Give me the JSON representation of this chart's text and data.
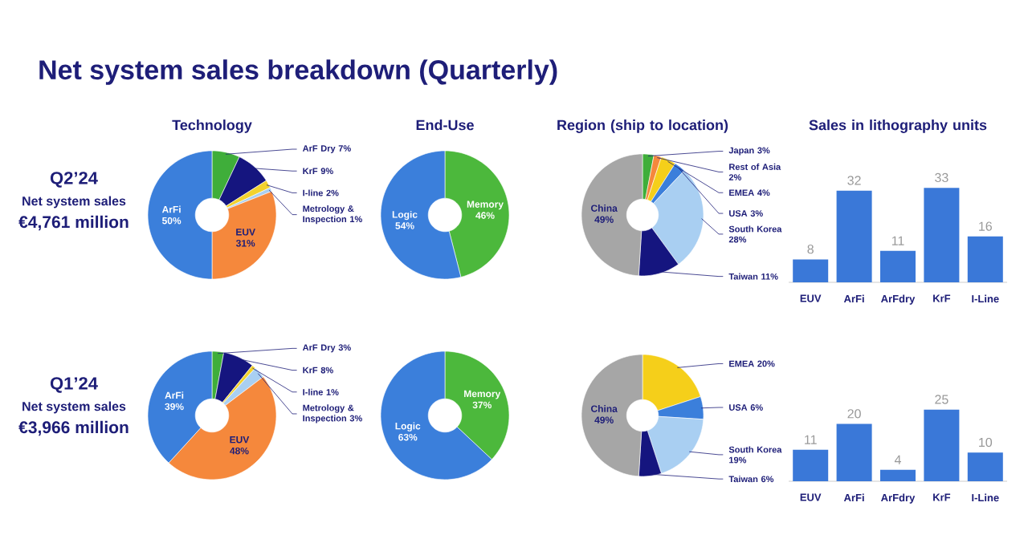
{
  "chart_data": [
    {
      "type": "other",
      "title": "Net system sales breakdown (Quarterly)",
      "annotations": [
        "Q2’24",
        "Net system sales",
        "€4,761 million",
        "Q1’24",
        "Net system sales",
        "€3,966 million"
      ]
    },
    {
      "type": "donut",
      "title": "Technology",
      "categories": [
        "ArF Dry",
        "KrF",
        "I-line",
        "Metrology & Inspection",
        "EUV",
        "ArFi"
      ],
      "values": [
        7,
        9,
        2,
        1,
        31,
        50
      ],
      "value_labels": [
        "7%",
        "9%",
        "2%",
        "1%",
        "31%",
        "50%"
      ],
      "colors": [
        "#3fae3a",
        "#15157f",
        "#f2d22e",
        "#a9cff2",
        "#f5883c",
        "#3b7fdb"
      ]
    },
    {
      "type": "donut",
      "title": "End-Use",
      "categories": [
        "Memory",
        "Logic"
      ],
      "values": [
        46,
        54
      ],
      "value_labels": [
        "46%",
        "54%"
      ],
      "colors": [
        "#4cb83c",
        "#3b7fdb"
      ]
    },
    {
      "type": "donut",
      "title": "Region (ship to location)",
      "categories": [
        "Japan",
        "Rest of Asia",
        "EMEA",
        "USA",
        "South Korea",
        "Taiwan",
        "China"
      ],
      "values": [
        3,
        2,
        4,
        3,
        28,
        11,
        49
      ],
      "value_labels": [
        "3%",
        "2%",
        "4%",
        "3%",
        "28%",
        "11%",
        "49%"
      ],
      "colors": [
        "#3fae3a",
        "#f5883c",
        "#f5cf1a",
        "#3b7fdb",
        "#a9cff2",
        "#15157f",
        "#a6a6a6"
      ]
    },
    {
      "type": "bar",
      "title": "Sales in lithography units",
      "categories": [
        "EUV",
        "ArFi",
        "ArFdry",
        "KrF",
        "I-Line"
      ],
      "values": [
        8,
        32,
        11,
        33,
        16
      ],
      "color": "#3a78d8",
      "data_labels": true
    },
    {
      "type": "donut",
      "categories": [
        "ArF Dry",
        "KrF",
        "I-line",
        "Metrology & Inspection",
        "EUV",
        "ArFi"
      ],
      "values": [
        3,
        8,
        1,
        3,
        48,
        39
      ],
      "value_labels": [
        "3%",
        "8%",
        "1%",
        "3%",
        "48%",
        "39%"
      ],
      "colors": [
        "#3fae3a",
        "#15157f",
        "#f2d22e",
        "#a9cff2",
        "#f5883c",
        "#3b7fdb"
      ]
    },
    {
      "type": "donut",
      "categories": [
        "Memory",
        "Logic"
      ],
      "values": [
        37,
        63
      ],
      "value_labels": [
        "37%",
        "63%"
      ],
      "colors": [
        "#4cb83c",
        "#3b7fdb"
      ]
    },
    {
      "type": "donut",
      "categories": [
        "EMEA",
        "USA",
        "South Korea",
        "Taiwan",
        "China"
      ],
      "values": [
        20,
        6,
        19,
        6,
        49
      ],
      "value_labels": [
        "20%",
        "6%",
        "19%",
        "6%",
        "49%"
      ],
      "colors": [
        "#f5cf1a",
        "#3b7fdb",
        "#a9cff2",
        "#15157f",
        "#a6a6a6"
      ]
    },
    {
      "type": "bar",
      "categories": [
        "EUV",
        "ArFi",
        "ArFdry",
        "KrF",
        "I-Line"
      ],
      "values": [
        11,
        20,
        4,
        25,
        10
      ],
      "color": "#3a78d8",
      "data_labels": true
    }
  ]
}
